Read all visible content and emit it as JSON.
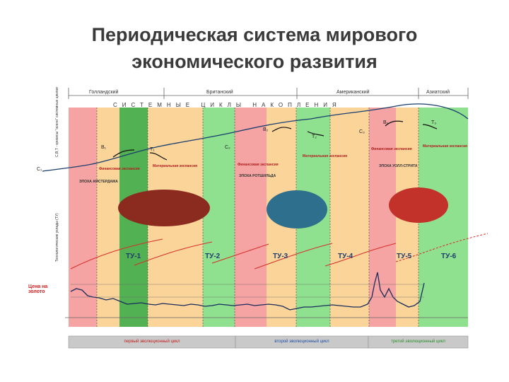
{
  "title": {
    "line1": "Периодическая система мирового",
    "line2": "экономического развития"
  },
  "eras": [
    "Голландский",
    "Британский",
    "Американский",
    "Азиатский"
  ],
  "cycles_banner": "СИСТЕМНЫЕ ЦИКЛЫ НАКОПЛЕНИЯ",
  "phases": {
    "financial_1": "Финансовая экспансия",
    "material_1": "Материальная экспансия",
    "financial_2": "Финансовая экспансия",
    "material_2": "Материальная экспансия",
    "financial_3": "Финансовая экспансия",
    "material_3": "Материальная экспансия"
  },
  "epochs": {
    "amsterdam": "ЭПОХА АМСТЕРДАМА",
    "rothschild": "ЭПОХА РОТШИЛЬДА",
    "wall_street": "ЭПОХА УОЛЛ-СТРИТА"
  },
  "markers": [
    "C₁",
    "B₁",
    "T₁",
    "C₂",
    "B₂",
    "T₂",
    "C₃",
    "B₃",
    "T₃"
  ],
  "tu_labels": [
    "ТУ-1",
    "ТУ-2",
    "ТУ-3",
    "ТУ-4",
    "ТУ-5",
    "ТУ-6"
  ],
  "side_labels": {
    "top": "С,В,Т - кризисы \"осени\" системных циклов",
    "middle": "Технологические уклады (ТУ)",
    "gold": "Цена на золото"
  },
  "bottom_cycles": {
    "first": "первый эволюционный цикл",
    "second": "второй эволюционный цикл",
    "third": "третий эволюционный цикл"
  },
  "colors": {
    "red_band": "#f5a3a3",
    "green_band": "#8fe08f",
    "orange_band": "#fbd49a",
    "dark_green": "#52b152",
    "circle_red": "#8b2a1e",
    "circle_blue": "#2d6f8c",
    "circle_red2": "#c2322a",
    "curve": "#1a3e6e",
    "tu_curve": "#d6302a"
  }
}
